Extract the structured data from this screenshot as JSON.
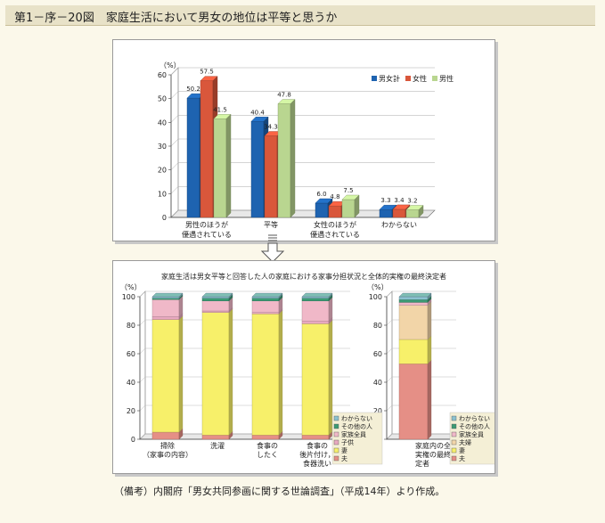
{
  "header": {
    "title": "第1－序－20図　家庭生活において男女の地位は平等と思うか"
  },
  "note": "（備考）内閣府「男女共同参画に関する世論調査」（平成14年）より作成。",
  "colors": {
    "male_total": "#1e63b0",
    "female": "#d9573b",
    "male": "#b9d690",
    "wakaranai": "#8bc1cf",
    "sonota": "#3b9a74",
    "kazoku": "#f0b8c8",
    "kodomo": "#e8a8c0",
    "fuufu": "#f2d5a8",
    "tsuma": "#f7f06a",
    "otto": "#e58f86"
  },
  "chart_data": [
    {
      "type": "bar",
      "ylabel": "（%）",
      "ylim": [
        0,
        60
      ],
      "yticks": [
        0,
        10,
        20,
        30,
        40,
        50,
        60
      ],
      "categories": [
        "男性のほうが\n優遇されている",
        "平等",
        "女性のほうが\n優遇されている",
        "わからない"
      ],
      "series": [
        {
          "name": "男女計",
          "values": [
            50.2,
            40.4,
            6.0,
            3.3
          ]
        },
        {
          "name": "女性",
          "values": [
            57.5,
            34.3,
            4.8,
            3.4
          ]
        },
        {
          "name": "男性",
          "values": [
            41.5,
            47.8,
            7.5,
            3.2
          ]
        }
      ],
      "legend": "top-right"
    },
    {
      "type": "stacked_bar",
      "title": "家庭生活は男女平等と回答した人の家庭における家事分担状況と全体的実権の最終決定者",
      "ylabel": "（%）",
      "ylim": [
        0,
        100
      ],
      "yticks": [
        0,
        20,
        40,
        60,
        80,
        100
      ],
      "categories": [
        "掃除\n（家事の内容）",
        "洗濯",
        "食事の\nしたく",
        "食事の\n後片付け，\n食器洗い"
      ],
      "legend": [
        "わからない",
        "その他の人",
        "家族全員",
        "子供",
        "妻",
        "夫"
      ],
      "series": [
        {
          "name": "夫",
          "values": [
            5,
            3,
            3,
            3
          ]
        },
        {
          "name": "妻",
          "values": [
            79,
            86,
            85,
            78
          ]
        },
        {
          "name": "子供",
          "values": [
            2,
            1,
            1,
            2
          ]
        },
        {
          "name": "家族全員",
          "values": [
            12,
            7,
            8,
            14
          ]
        },
        {
          "name": "その他の人",
          "values": [
            1,
            2,
            2,
            2
          ]
        },
        {
          "name": "わからない",
          "values": [
            1,
            1,
            1,
            1
          ]
        }
      ]
    },
    {
      "type": "stacked_bar",
      "ylabel": "（%）",
      "ylim": [
        0,
        100
      ],
      "yticks": [
        0,
        20,
        40,
        60,
        80,
        100
      ],
      "categories": [
        "家庭内の全体的\n実権の最終的決\n定者"
      ],
      "legend": [
        "わからない",
        "その他の人",
        "家族全員",
        "夫婦",
        "妻",
        "夫"
      ],
      "series": [
        {
          "name": "夫",
          "values": [
            53
          ]
        },
        {
          "name": "妻",
          "values": [
            17
          ]
        },
        {
          "name": "夫婦",
          "values": [
            24
          ]
        },
        {
          "name": "家族全員",
          "values": [
            2
          ]
        },
        {
          "name": "その他の人",
          "values": [
            2
          ]
        },
        {
          "name": "わからない",
          "values": [
            2
          ]
        }
      ]
    }
  ]
}
